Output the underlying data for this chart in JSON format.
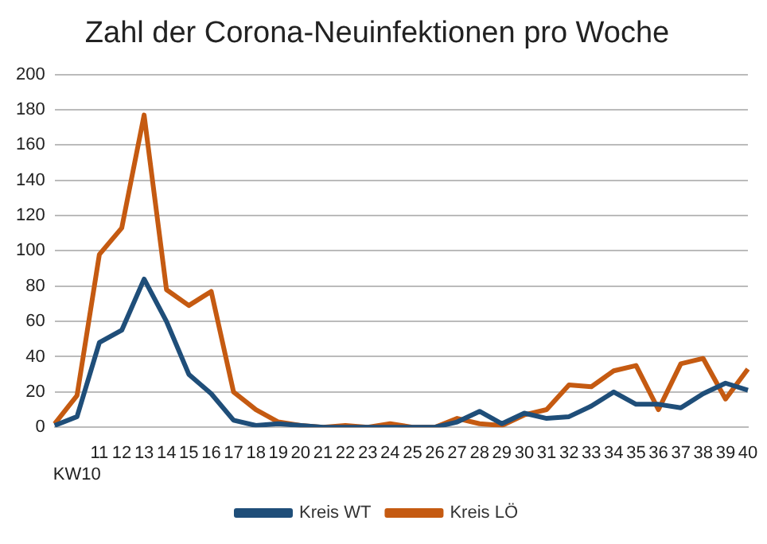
{
  "chart_data": {
    "type": "line",
    "title": "Zahl der Corona-Neuinfektionen pro Woche",
    "categories": [
      null,
      "KW10",
      "11",
      "12",
      "13",
      "14",
      "15",
      "16",
      "17",
      "18",
      "19",
      "20",
      "21",
      "22",
      "23",
      "24",
      "25",
      "26",
      "27",
      "28",
      "29",
      "30",
      "31",
      "32",
      "33",
      "34",
      "35",
      "36",
      "37",
      "38",
      "39",
      "40"
    ],
    "series": [
      {
        "name": "Kreis WT",
        "color": "#1f4e79",
        "values": [
          1,
          6,
          48,
          55,
          84,
          60,
          30,
          19,
          4,
          1,
          2,
          1,
          0,
          0,
          0,
          0,
          0,
          0,
          3,
          9,
          2,
          8,
          5,
          6,
          12,
          20,
          13,
          13,
          11,
          19,
          25,
          21
        ]
      },
      {
        "name": "Kreis LÖ",
        "color": "#c55a11",
        "values": [
          2,
          18,
          98,
          113,
          177,
          78,
          69,
          77,
          20,
          10,
          3,
          1,
          0,
          1,
          0,
          2,
          0,
          0,
          5,
          2,
          1,
          7,
          10,
          24,
          23,
          32,
          35,
          10,
          36,
          39,
          16,
          33
        ]
      }
    ],
    "ylim": [
      0,
      200
    ],
    "yticks": [
      0,
      20,
      40,
      60,
      80,
      100,
      120,
      140,
      160,
      180,
      200
    ],
    "grid": "y",
    "legend": "bottom",
    "marker": "none"
  }
}
